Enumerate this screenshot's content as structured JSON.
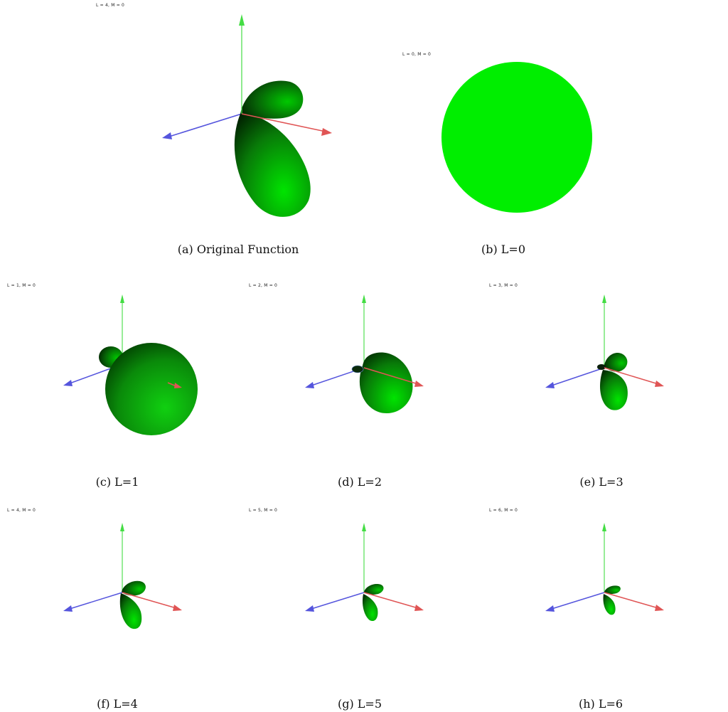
{
  "panels": [
    {
      "id": "a",
      "render_label": "L = 4, M = 0",
      "caption": "(a)  Original Function"
    },
    {
      "id": "b",
      "render_label": "L = 0, M = 0",
      "caption": "(b)  L=0"
    },
    {
      "id": "c",
      "render_label": "L = 1, M = 0",
      "caption": "(c)  L=1"
    },
    {
      "id": "d",
      "render_label": "L = 2, M = 0",
      "caption": "(d)  L=2"
    },
    {
      "id": "e",
      "render_label": "L = 3, M = 0",
      "caption": "(e)  L=3"
    },
    {
      "id": "f",
      "render_label": "L = 4, M = 0",
      "caption": "(f)  L=4"
    },
    {
      "id": "g",
      "render_label": "L = 5, M = 0",
      "caption": "(g)  L=5"
    },
    {
      "id": "h",
      "render_label": "L = 6, M = 0",
      "caption": "(h)  L=6"
    }
  ],
  "colors": {
    "lobe_bright": "#00ee00",
    "lobe_dark": "#001800",
    "axis_x": "#e05555",
    "axis_y": "#44dd44",
    "axis_z": "#5555dd"
  }
}
